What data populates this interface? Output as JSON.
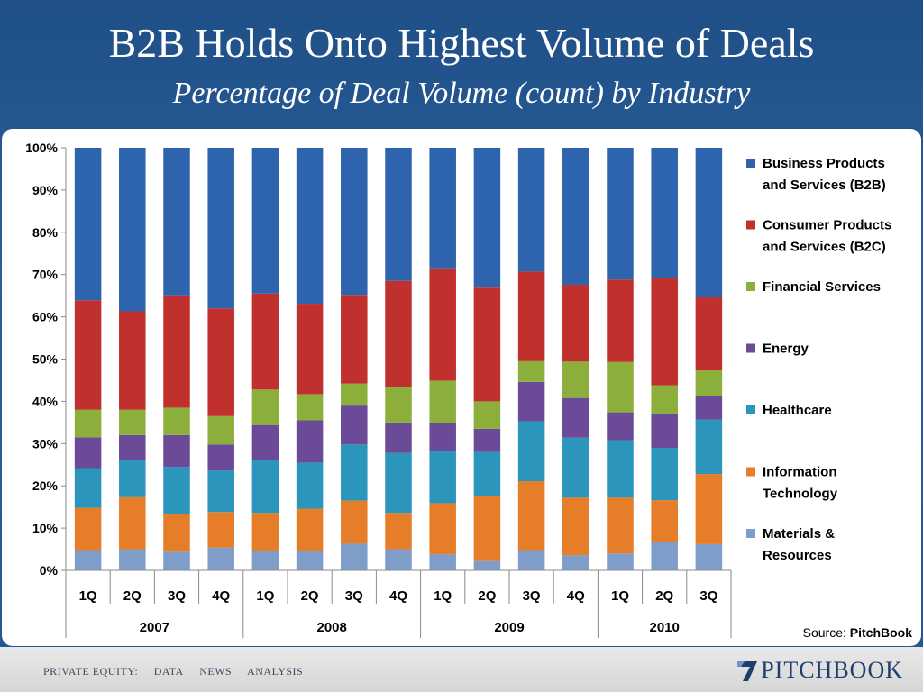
{
  "slide": {
    "title": "B2B Holds Onto Highest Volume of Deals",
    "subtitle": "Percentage of Deal Volume (count) by Industry",
    "source_label": "Source: ",
    "source_name": "PitchBook"
  },
  "footer": {
    "nav": [
      "PRIVATE EQUITY:",
      "DATA",
      "NEWS",
      "ANALYSIS"
    ],
    "logo_text": "PITCHBOOK"
  },
  "chart_data": {
    "type": "bar",
    "stacked": true,
    "categories": [
      "1Q",
      "2Q",
      "3Q",
      "4Q",
      "1Q",
      "2Q",
      "3Q",
      "4Q",
      "1Q",
      "2Q",
      "3Q",
      "4Q",
      "1Q",
      "2Q",
      "3Q"
    ],
    "groups": [
      {
        "label": "2007",
        "count": 4
      },
      {
        "label": "2008",
        "count": 4
      },
      {
        "label": "2009",
        "count": 4
      },
      {
        "label": "2010",
        "count": 3
      }
    ],
    "ylim": [
      0,
      100
    ],
    "yticks": [
      "0%",
      "10%",
      "20%",
      "30%",
      "40%",
      "50%",
      "60%",
      "70%",
      "80%",
      "90%",
      "100%"
    ],
    "grid": false,
    "legend_position": "right",
    "series": [
      {
        "name": "Materials & Resources",
        "color": "#7f9dc9",
        "values": [
          4.8,
          5.0,
          4.4,
          5.4,
          4.6,
          4.5,
          6.3,
          5.0,
          3.8,
          2.2,
          4.8,
          3.6,
          4.0,
          6.8,
          6.2
        ]
      },
      {
        "name": "Information Technology",
        "color": "#e67d28",
        "values": [
          10.0,
          12.3,
          8.9,
          8.4,
          9.0,
          10.1,
          10.2,
          8.6,
          12.1,
          15.4,
          16.3,
          13.6,
          13.2,
          9.8,
          16.6
        ]
      },
      {
        "name": "Healthcare",
        "color": "#2b95bb",
        "values": [
          9.4,
          8.8,
          11.2,
          9.8,
          12.5,
          10.9,
          13.3,
          14.2,
          12.3,
          10.4,
          14.2,
          14.2,
          13.6,
          12.4,
          12.9
        ]
      },
      {
        "name": "Energy",
        "color": "#6b4a97",
        "values": [
          7.3,
          5.9,
          7.5,
          6.2,
          8.3,
          10.0,
          9.2,
          7.2,
          6.6,
          5.5,
          9.3,
          9.4,
          6.6,
          8.1,
          5.5
        ]
      },
      {
        "name": "Financial Services",
        "color": "#8caf3b",
        "values": [
          6.5,
          6.0,
          6.5,
          6.7,
          8.4,
          6.2,
          5.2,
          8.4,
          10.1,
          6.5,
          4.9,
          8.6,
          11.9,
          6.7,
          6.1
        ]
      },
      {
        "name": "Consumer Products and Services (B2C)",
        "color": "#c0302d",
        "values": [
          25.9,
          23.3,
          26.6,
          25.5,
          22.7,
          21.4,
          21.0,
          25.1,
          26.6,
          26.9,
          21.2,
          18.2,
          19.5,
          25.5,
          17.3
        ]
      },
      {
        "name": "Business Products and Services (B2B)",
        "color": "#2d64ad",
        "values": [
          36.1,
          38.7,
          34.9,
          38.0,
          34.5,
          36.9,
          34.8,
          31.5,
          28.5,
          33.1,
          29.3,
          32.4,
          31.2,
          30.7,
          35.4
        ]
      }
    ],
    "legend": [
      {
        "lines": [
          "Business Products",
          "and Services (B2B)"
        ],
        "color": "#2d64ad"
      },
      {
        "lines": [
          "Consumer Products",
          "and Services (B2C)"
        ],
        "color": "#c0302d"
      },
      {
        "lines": [
          "Financial Services"
        ],
        "color": "#8caf3b"
      },
      {
        "lines": [
          "Energy"
        ],
        "color": "#6b4a97"
      },
      {
        "lines": [
          "Healthcare"
        ],
        "color": "#2b95bb"
      },
      {
        "lines": [
          "Information",
          "Technology"
        ],
        "color": "#e67d28"
      },
      {
        "lines": [
          "Materials &",
          "Resources"
        ],
        "color": "#7f9dc9"
      }
    ]
  }
}
